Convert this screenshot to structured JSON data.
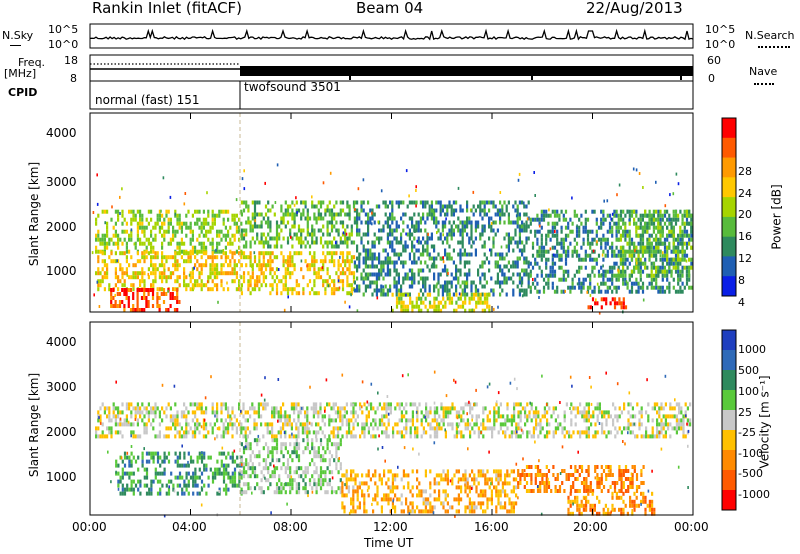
{
  "header": {
    "station": "Rankin Inlet (fitACF)",
    "beam": "Beam 04",
    "date": "22/Aug/2013"
  },
  "top_panels": {
    "nsky_label": "N.Sky",
    "nsky_ticks": [
      "10^5",
      "10^0"
    ],
    "nsearch_label": "N.Search",
    "nsearch_ticks": [
      "10^5",
      "10^0"
    ],
    "freq_label_line1": "Freq.",
    "freq_label_line2": "[MHz]",
    "freq_ticks": [
      "18",
      "8"
    ],
    "nave_label": "Nave",
    "nave_ticks": [
      "60",
      "0"
    ],
    "cpid_label": "CPID",
    "cpid_modes": [
      "normal (fast) 151",
      "twofsound 3501"
    ]
  },
  "power_panel": {
    "ylabel": "Slant Range [km]",
    "yticks": [
      "4000",
      "3000",
      "2000",
      "1000"
    ],
    "colorbar_label": "Power [dB]",
    "colorbar_ticks": [
      "28",
      "24",
      "20",
      "16",
      "12",
      "8",
      "4"
    ],
    "colorbar_colors": [
      "#ff0000",
      "#ff5a00",
      "#ff9a00",
      "#ffc800",
      "#a6d400",
      "#58bb3c",
      "#2e8a5e",
      "#1f5fb3",
      "#0a1fe6"
    ]
  },
  "velocity_panel": {
    "ylabel": "Slant Range [km]",
    "yticks": [
      "4000",
      "3000",
      "2000",
      "1000"
    ],
    "colorbar_label": "Velocity [m s⁻¹]",
    "colorbar_ticks": [
      "1000",
      "500",
      "100",
      "25",
      "-25",
      "-100",
      "-500",
      "-1000"
    ],
    "colorbar_colors": [
      "#1f3fbf",
      "#2f6ab8",
      "#2f8a5e",
      "#59c93a",
      "#c8c8c8",
      "#ffc000",
      "#ff8a00",
      "#ff5a00",
      "#ff0000"
    ]
  },
  "chart_data": {
    "type": "heatmap",
    "title": "Rankin Inlet (fitACF)",
    "xlabel": "Time UT",
    "x_ticks": [
      "00:00",
      "04:00",
      "08:00",
      "12:00",
      "16:00",
      "20:00",
      "00:00"
    ],
    "x_range_hours": [
      0,
      24
    ],
    "ylabel": "Slant Range [km]",
    "y_range_km": [
      180,
      4500
    ],
    "panels": [
      {
        "name": "Power",
        "unit": "dB",
        "range": [
          0,
          30
        ],
        "regions": [
          {
            "t": [
              0.2,
              6.0
            ],
            "r": [
              1500,
              2400
            ],
            "v": 14
          },
          {
            "t": [
              0.2,
              6.0
            ],
            "r": [
              700,
              1500
            ],
            "v": 18
          },
          {
            "t": [
              0.8,
              3.6
            ],
            "r": [
              250,
              700
            ],
            "v": 26
          },
          {
            "t": [
              6.0,
              10.5
            ],
            "r": [
              1600,
              2600
            ],
            "v": 12
          },
          {
            "t": [
              6.0,
              10.5
            ],
            "r": [
              600,
              1500
            ],
            "v": 18
          },
          {
            "t": [
              10.5,
              17.5
            ],
            "r": [
              600,
              2600
            ],
            "v": 8
          },
          {
            "t": [
              12.0,
              16.0
            ],
            "r": [
              250,
              600
            ],
            "v": 16
          },
          {
            "t": [
              17.5,
              23.9
            ],
            "r": [
              600,
              2400
            ],
            "v": 8
          },
          {
            "t": [
              19.8,
              21.4
            ],
            "r": [
              250,
              500
            ],
            "v": 28
          },
          {
            "t": [
              21.0,
              23.9
            ],
            "r": [
              1000,
              2400
            ],
            "v": 12
          }
        ]
      },
      {
        "name": "Velocity",
        "unit": "m s-1",
        "range": [
          -1000,
          1000
        ],
        "regions": [
          {
            "t": [
              0.2,
              23.9
            ],
            "r": [
              1900,
              2700
            ],
            "v": 0
          },
          {
            "t": [
              1.0,
              6.0
            ],
            "r": [
              700,
              1600
            ],
            "v": 400
          },
          {
            "t": [
              6.0,
              10.0
            ],
            "r": [
              700,
              1900
            ],
            "v": 150
          },
          {
            "t": [
              10.0,
              17.0
            ],
            "r": [
              300,
              1200
            ],
            "v": -300
          },
          {
            "t": [
              17.0,
              22.0
            ],
            "r": [
              700,
              1300
            ],
            "v": -500
          },
          {
            "t": [
              19.0,
              22.5
            ],
            "r": [
              250,
              700
            ],
            "v": -400
          }
        ]
      }
    ]
  }
}
